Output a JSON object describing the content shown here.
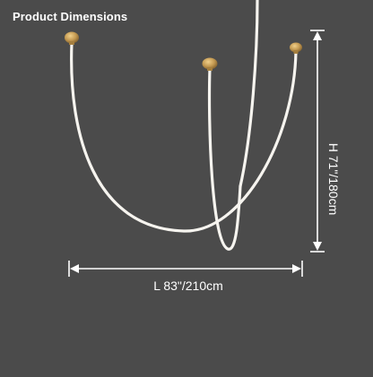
{
  "header": {
    "title": "Product Dimensions"
  },
  "dimensions": {
    "width_label": "L 83\"/210cm",
    "height_label": "H 71\"/180cm"
  },
  "colors": {
    "background": "#4b4b4b",
    "light_strip": "#f6f4ef",
    "canopy_gold": "#c49a52",
    "dimension_line": "#ffffff",
    "text": "#ffffff"
  }
}
